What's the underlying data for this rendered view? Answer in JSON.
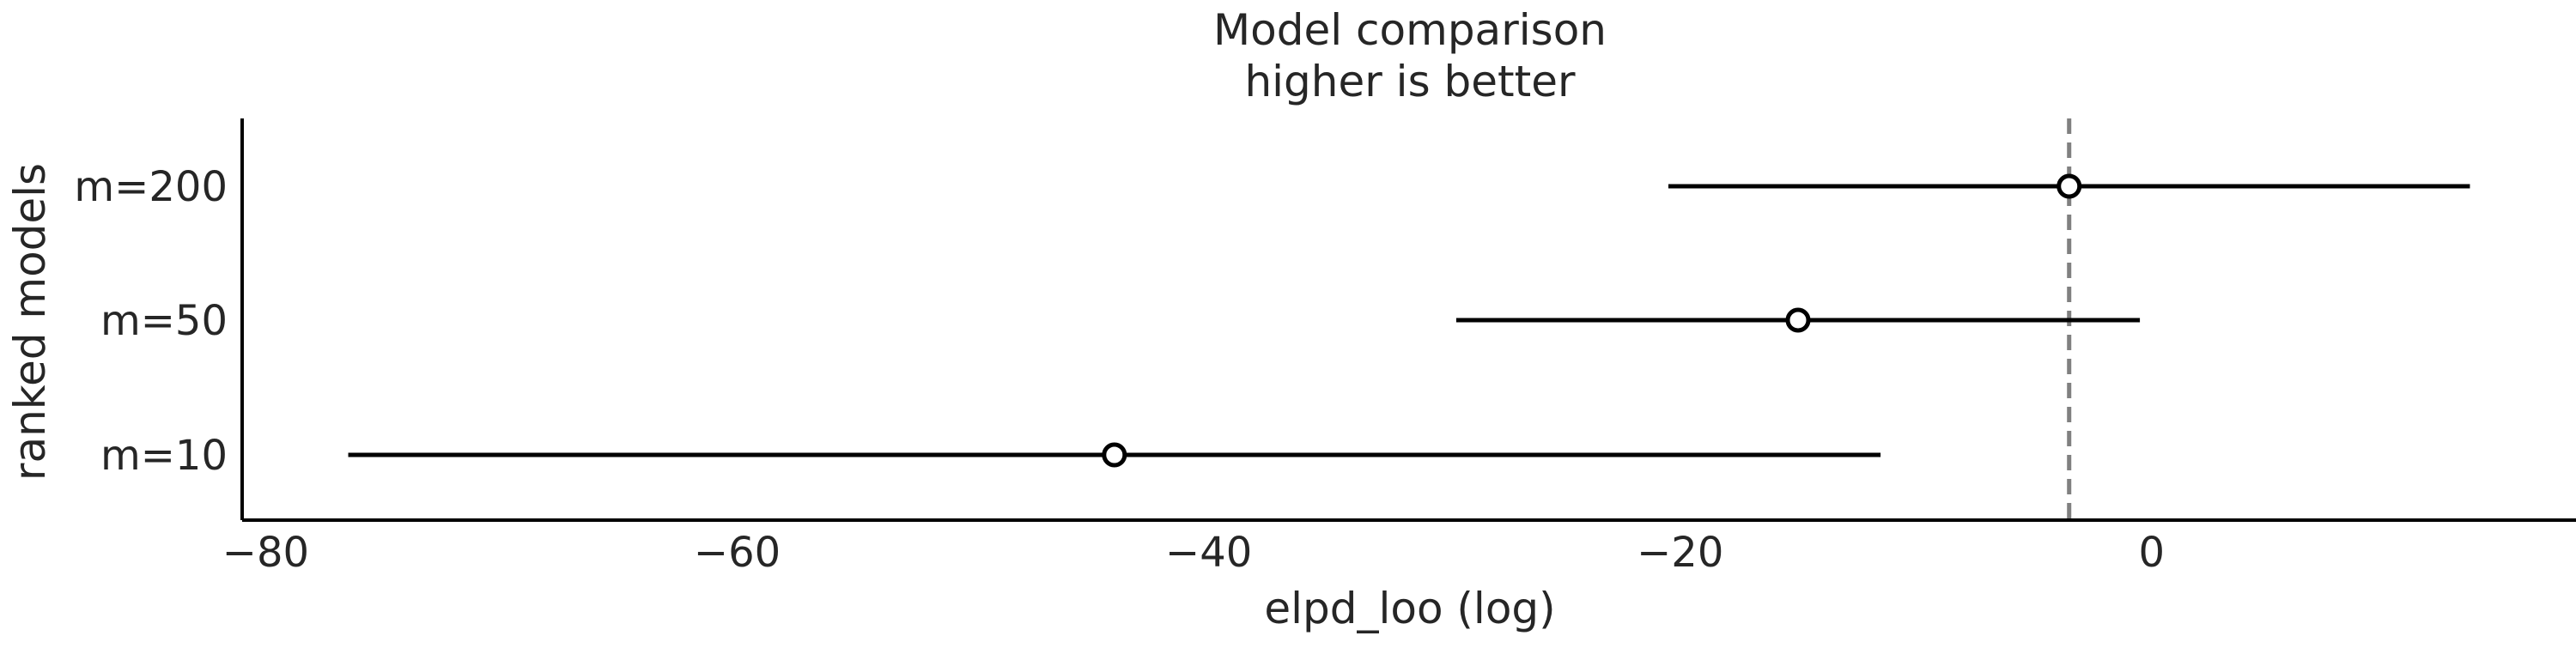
{
  "chart_data": {
    "type": "scatter",
    "title": "Model comparison",
    "subtitle": "higher is better",
    "xlabel": "elpd_loo (log)",
    "ylabel": "ranked models",
    "xlim": [
      -81,
      18
    ],
    "xticks": [
      -80,
      -60,
      -40,
      -20,
      0
    ],
    "xtick_labels": [
      "−80",
      "−60",
      "−40",
      "−20",
      "0"
    ],
    "grid": false,
    "reference_line": {
      "x": -3.5,
      "style": "dashed",
      "color": "#808080"
    },
    "models": [
      {
        "label": "m=200",
        "elpd": -3.5,
        "lower": -20.5,
        "upper": 13.5
      },
      {
        "label": "m=50",
        "elpd": -15.0,
        "lower": -29.5,
        "upper": -0.5
      },
      {
        "label": "m=10",
        "elpd": -44.0,
        "lower": -76.5,
        "upper": -11.5
      }
    ],
    "colors": {
      "interval": "#000000",
      "marker_fill": "#ffffff",
      "marker_edge": "#000000",
      "axis": "#000000",
      "text": "#262626"
    }
  }
}
